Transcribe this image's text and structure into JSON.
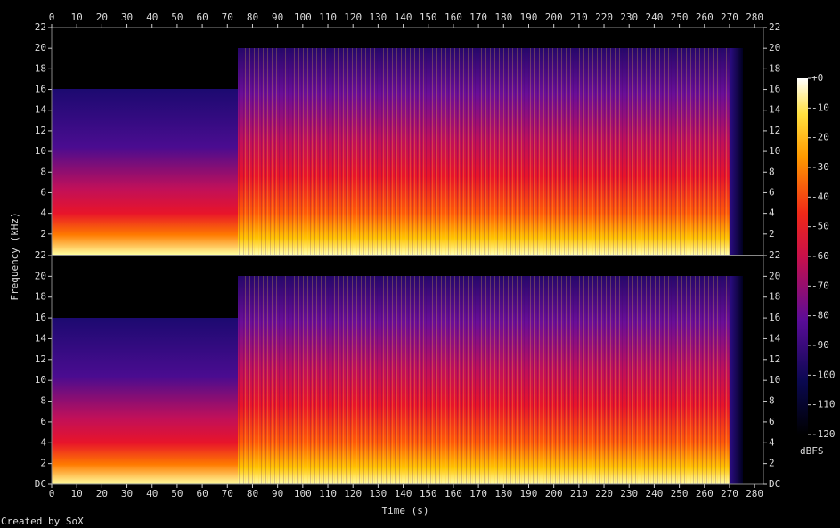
{
  "chart_data": {
    "type": "spectrogram",
    "x_label": "Time (s)",
    "y_label": "Frequency (kHz)",
    "xlim": [
      0,
      283.5
    ],
    "xticks": [
      0,
      10,
      20,
      30,
      40,
      50,
      60,
      70,
      80,
      90,
      100,
      110,
      120,
      130,
      140,
      150,
      160,
      170,
      180,
      190,
      200,
      210,
      220,
      230,
      240,
      250,
      260,
      270,
      280
    ],
    "channels": [
      {
        "ylim": [
          0,
          22
        ],
        "yticks": [
          2,
          4,
          6,
          8,
          10,
          12,
          14,
          16,
          18,
          20,
          22
        ]
      },
      {
        "ylim": [
          0,
          22
        ],
        "yticks": [
          {
            "value": 0,
            "label": "DC"
          },
          2,
          4,
          6,
          8,
          10,
          12,
          14,
          16,
          18,
          20,
          22
        ]
      }
    ],
    "colorbar": {
      "label": "dBFS",
      "lim": [
        -120,
        0
      ],
      "ticks": [
        {
          "value": 0,
          "label": "+0"
        },
        -10,
        -20,
        -30,
        -40,
        -50,
        -60,
        -70,
        -80,
        -90,
        -100,
        -110,
        -120
      ]
    },
    "footer": "Created by SoX"
  }
}
